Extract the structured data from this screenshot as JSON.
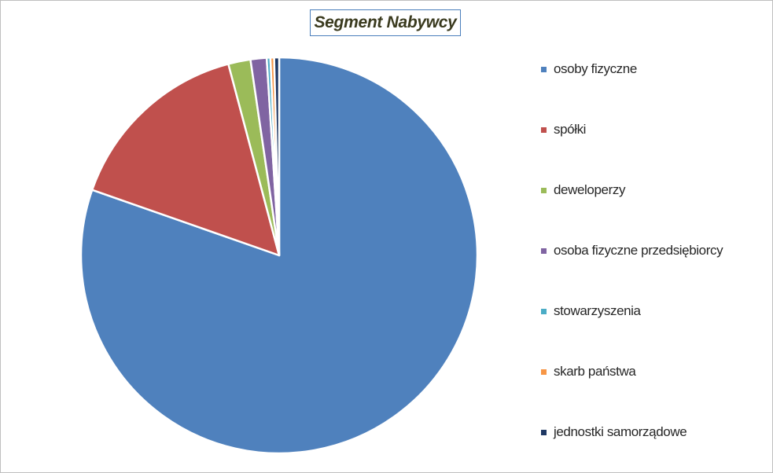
{
  "chart_data": {
    "type": "pie",
    "title": "Segment Nabywcy",
    "legend_position": "right",
    "categories": [
      "osoby fizyczne",
      "spółki",
      "deweloperzy",
      "osoba fizyczne przedsiębiorcy",
      "stowarzyszenia",
      "skarb państwa",
      "jednostki samorządowe"
    ],
    "values": [
      79.8,
      15.4,
      1.8,
      1.3,
      0.3,
      0.3,
      0.4
    ],
    "colors": [
      "#4f81bd",
      "#c0504d",
      "#9bbb59",
      "#8064a2",
      "#4bacc6",
      "#f79646",
      "#1f3864"
    ]
  }
}
